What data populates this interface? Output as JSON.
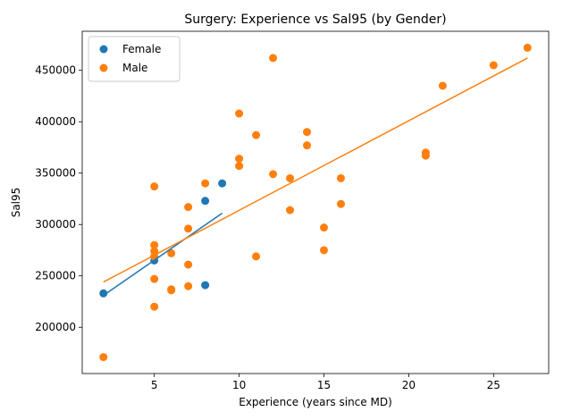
{
  "chart_data": {
    "type": "scatter",
    "title": "Surgery: Experience vs Sal95 (by Gender)",
    "xlabel": "Experience (years since MD)",
    "ylabel": "Sal95",
    "xlim": [
      0.75,
      28.25
    ],
    "ylim": [
      155000,
      488000
    ],
    "xticks": [
      5,
      10,
      15,
      20,
      25
    ],
    "yticks": [
      200000,
      250000,
      300000,
      350000,
      400000,
      450000
    ],
    "grid": false,
    "legend_position": "top-left",
    "series": [
      {
        "name": "Female",
        "color": "#1f77b4",
        "points": [
          {
            "x": 2,
            "y": 233000
          },
          {
            "x": 5,
            "y": 265000
          },
          {
            "x": 8,
            "y": 323000
          },
          {
            "x": 8,
            "y": 241000
          },
          {
            "x": 9,
            "y": 340000
          }
        ],
        "trend": {
          "x": [
            2,
            9
          ],
          "y": [
            231000,
            311000
          ]
        }
      },
      {
        "name": "Male",
        "color": "#ff7f0e",
        "points": [
          {
            "x": 2,
            "y": 171000
          },
          {
            "x": 5,
            "y": 337000
          },
          {
            "x": 5,
            "y": 280000
          },
          {
            "x": 5,
            "y": 274000
          },
          {
            "x": 5,
            "y": 269000
          },
          {
            "x": 5,
            "y": 247000
          },
          {
            "x": 5,
            "y": 220000
          },
          {
            "x": 6,
            "y": 272000
          },
          {
            "x": 6,
            "y": 237000
          },
          {
            "x": 6,
            "y": 236000
          },
          {
            "x": 7,
            "y": 317000
          },
          {
            "x": 7,
            "y": 296000
          },
          {
            "x": 7,
            "y": 261000
          },
          {
            "x": 7,
            "y": 240000
          },
          {
            "x": 8,
            "y": 340000
          },
          {
            "x": 10,
            "y": 408000
          },
          {
            "x": 10,
            "y": 364000
          },
          {
            "x": 10,
            "y": 357000
          },
          {
            "x": 11,
            "y": 387000
          },
          {
            "x": 11,
            "y": 269000
          },
          {
            "x": 12,
            "y": 462000
          },
          {
            "x": 12,
            "y": 349000
          },
          {
            "x": 13,
            "y": 345000
          },
          {
            "x": 13,
            "y": 314000
          },
          {
            "x": 14,
            "y": 390000
          },
          {
            "x": 14,
            "y": 377000
          },
          {
            "x": 15,
            "y": 297000
          },
          {
            "x": 15,
            "y": 275000
          },
          {
            "x": 16,
            "y": 345000
          },
          {
            "x": 16,
            "y": 320000
          },
          {
            "x": 21,
            "y": 370000
          },
          {
            "x": 21,
            "y": 367000
          },
          {
            "x": 22,
            "y": 435000
          },
          {
            "x": 25,
            "y": 455000
          },
          {
            "x": 27,
            "y": 472000
          }
        ],
        "trend": {
          "x": [
            2,
            27
          ],
          "y": [
            244000,
            462000
          ]
        }
      }
    ]
  }
}
